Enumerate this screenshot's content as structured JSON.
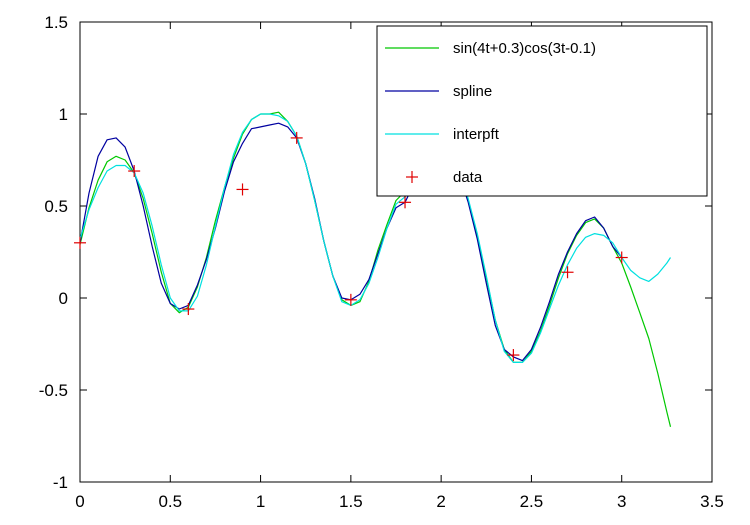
{
  "chart_data": {
    "type": "line",
    "title": "",
    "xlabel": "",
    "ylabel": "",
    "xlim": [
      0,
      3.5
    ],
    "ylim": [
      -1,
      1.5
    ],
    "xticks": [
      "0",
      "0.5",
      "1",
      "1.5",
      "2",
      "2.5",
      "3",
      "3.5"
    ],
    "yticks": [
      "-1",
      "-0.5",
      "0",
      "0.5",
      "1",
      "1.5"
    ],
    "xtick_values": [
      0,
      0.5,
      1,
      1.5,
      2,
      2.5,
      3,
      3.5
    ],
    "ytick_values": [
      -1,
      -0.5,
      0,
      0.5,
      1,
      1.5
    ],
    "grid": false,
    "legend_position": "top-right",
    "series": [
      {
        "name": "sin(4t+0.3)cos(3t-0.1)",
        "color": "#00c800",
        "style": "line",
        "x": [
          0,
          0.05,
          0.1,
          0.15,
          0.2,
          0.25,
          0.3,
          0.35,
          0.4,
          0.45,
          0.5,
          0.55,
          0.6,
          0.65,
          0.7,
          0.75,
          0.8,
          0.85,
          0.9,
          0.95,
          1.0,
          1.05,
          1.1,
          1.15,
          1.2,
          1.25,
          1.3,
          1.35,
          1.4,
          1.45,
          1.5,
          1.55,
          1.6,
          1.65,
          1.7,
          1.75,
          1.8,
          1.85,
          1.9,
          1.95,
          2.0,
          2.05,
          2.1,
          2.15,
          2.2,
          2.25,
          2.3,
          2.35,
          2.4,
          2.45,
          2.5,
          2.55,
          2.6,
          2.65,
          2.7,
          2.75,
          2.8,
          2.85,
          2.9,
          2.95,
          3.0,
          3.05,
          3.1,
          3.15,
          3.2,
          3.25,
          3.27
        ],
        "y": [
          0.29,
          0.49,
          0.64,
          0.74,
          0.77,
          0.75,
          0.68,
          0.54,
          0.35,
          0.14,
          -0.03,
          -0.08,
          -0.05,
          0.06,
          0.22,
          0.42,
          0.6,
          0.76,
          0.89,
          0.97,
          1.0,
          1.0,
          1.01,
          0.96,
          0.88,
          0.73,
          0.53,
          0.31,
          0.12,
          -0.01,
          -0.04,
          -0.02,
          0.09,
          0.26,
          0.4,
          0.53,
          0.58,
          0.66,
          0.74,
          0.78,
          0.78,
          0.75,
          0.67,
          0.53,
          0.34,
          0.11,
          -0.12,
          -0.28,
          -0.35,
          -0.35,
          -0.29,
          -0.18,
          -0.04,
          0.11,
          0.24,
          0.34,
          0.41,
          0.43,
          0.38,
          0.28,
          0.19,
          0.06,
          -0.08,
          -0.22,
          -0.41,
          -0.62,
          -0.7
        ]
      },
      {
        "name": "spline",
        "color": "#0000a0",
        "style": "line",
        "x": [
          0,
          0.05,
          0.1,
          0.15,
          0.2,
          0.25,
          0.3,
          0.35,
          0.4,
          0.45,
          0.5,
          0.55,
          0.6,
          0.65,
          0.7,
          0.75,
          0.8,
          0.85,
          0.9,
          0.95,
          1.0,
          1.05,
          1.1,
          1.15,
          1.2,
          1.25,
          1.3,
          1.35,
          1.4,
          1.45,
          1.5,
          1.55,
          1.6,
          1.65,
          1.7,
          1.75,
          1.8,
          1.85,
          1.9,
          1.95,
          2.0,
          2.05,
          2.1,
          2.15,
          2.2,
          2.25,
          2.3,
          2.35,
          2.4,
          2.45,
          2.5,
          2.55,
          2.6,
          2.65,
          2.7,
          2.75,
          2.8,
          2.85,
          2.9,
          2.95,
          3.0
        ],
        "y": [
          0.3,
          0.57,
          0.77,
          0.86,
          0.87,
          0.82,
          0.69,
          0.5,
          0.28,
          0.08,
          -0.03,
          -0.06,
          -0.04,
          0.07,
          0.21,
          0.38,
          0.58,
          0.74,
          0.84,
          0.92,
          0.93,
          0.94,
          0.95,
          0.93,
          0.87,
          0.73,
          0.54,
          0.31,
          0.12,
          0.0,
          -0.01,
          0.02,
          0.1,
          0.24,
          0.38,
          0.49,
          0.52,
          0.62,
          0.72,
          0.77,
          0.78,
          0.76,
          0.67,
          0.52,
          0.32,
          0.08,
          -0.15,
          -0.28,
          -0.32,
          -0.34,
          -0.28,
          -0.16,
          -0.02,
          0.13,
          0.25,
          0.35,
          0.42,
          0.44,
          0.38,
          0.28,
          0.22
        ]
      },
      {
        "name": "interpft",
        "color": "#00e0e0",
        "style": "line",
        "x": [
          0,
          0.05,
          0.1,
          0.15,
          0.2,
          0.25,
          0.3,
          0.35,
          0.4,
          0.45,
          0.5,
          0.55,
          0.6,
          0.65,
          0.7,
          0.75,
          0.8,
          0.85,
          0.9,
          0.95,
          1.0,
          1.05,
          1.1,
          1.15,
          1.2,
          1.25,
          1.3,
          1.35,
          1.4,
          1.45,
          1.5,
          1.55,
          1.6,
          1.65,
          1.7,
          1.75,
          1.8,
          1.85,
          1.9,
          1.95,
          2.0,
          2.05,
          2.1,
          2.15,
          2.2,
          2.25,
          2.3,
          2.35,
          2.4,
          2.45,
          2.5,
          2.55,
          2.6,
          2.65,
          2.7,
          2.75,
          2.8,
          2.85,
          2.9,
          2.95,
          3.0,
          3.05,
          3.1,
          3.15,
          3.2,
          3.25,
          3.27
        ],
        "y": [
          0.32,
          0.48,
          0.6,
          0.69,
          0.72,
          0.72,
          0.68,
          0.57,
          0.39,
          0.18,
          0.0,
          -0.07,
          -0.07,
          0.01,
          0.18,
          0.39,
          0.6,
          0.78,
          0.9,
          0.97,
          1.0,
          1.0,
          0.99,
          0.96,
          0.88,
          0.73,
          0.53,
          0.31,
          0.12,
          -0.02,
          -0.04,
          -0.01,
          0.08,
          0.22,
          0.38,
          0.51,
          0.55,
          0.65,
          0.75,
          0.83,
          0.83,
          0.78,
          0.69,
          0.54,
          0.35,
          0.12,
          -0.12,
          -0.29,
          -0.35,
          -0.35,
          -0.3,
          -0.19,
          -0.06,
          0.07,
          0.18,
          0.27,
          0.33,
          0.35,
          0.34,
          0.3,
          0.22,
          0.15,
          0.11,
          0.09,
          0.13,
          0.19,
          0.22
        ]
      },
      {
        "name": "data",
        "color": "#e00000",
        "style": "markers",
        "marker": "plus",
        "x": [
          0,
          0.3,
          0.6,
          0.9,
          1.2,
          1.5,
          1.8,
          1.85,
          2.1,
          2.4,
          2.7,
          3.0
        ],
        "y": [
          0.3,
          0.69,
          -0.06,
          0.59,
          0.87,
          -0.01,
          0.52,
          0.66,
          0.66,
          -0.31,
          0.14,
          0.22
        ]
      }
    ]
  }
}
